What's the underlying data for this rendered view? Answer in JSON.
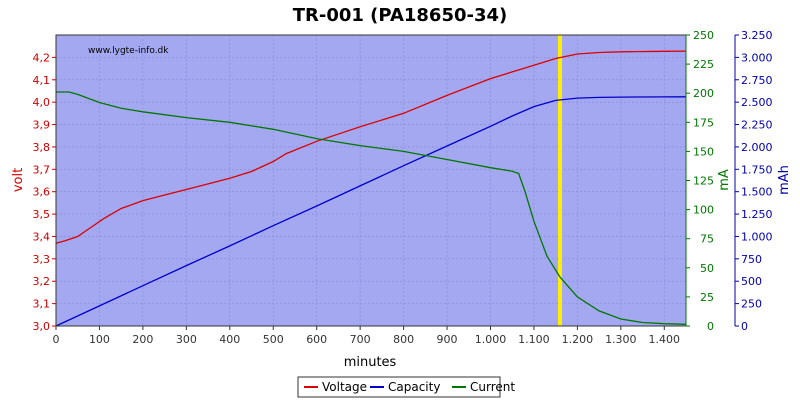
{
  "chart_data": {
    "type": "line",
    "title": "TR-001 (PA18650-34)",
    "watermark": "www.lygte-info.dk",
    "xlabel": "minutes",
    "xlim": [
      0,
      1450
    ],
    "x_ticks": [
      0,
      100,
      200,
      300,
      400,
      500,
      600,
      700,
      800,
      900,
      1000,
      1100,
      1200,
      1300,
      1400
    ],
    "x_tick_labels": [
      "0",
      "100",
      "200",
      "300",
      "400",
      "500",
      "600",
      "700",
      "800",
      "900",
      "1.000",
      "1.100",
      "1.200",
      "1.300",
      "1.400"
    ],
    "left_axis": {
      "label": "volt",
      "color": "#cc0000",
      "lim": [
        3.0,
        4.3
      ],
      "ticks": [
        3.0,
        3.1,
        3.2,
        3.3,
        3.4,
        3.5,
        3.6,
        3.7,
        3.8,
        3.9,
        4.0,
        4.1,
        4.2
      ],
      "tick_labels": [
        "3,0",
        "3,1",
        "3,2",
        "3,3",
        "3,4",
        "3,5",
        "3,6",
        "3,7",
        "3,8",
        "3,9",
        "4,0",
        "4,1",
        "4,2"
      ]
    },
    "mid_axis": {
      "label": "mA",
      "color": "#007700",
      "lim": [
        0,
        250
      ],
      "ticks": [
        0,
        25,
        50,
        75,
        100,
        125,
        150,
        175,
        200,
        225,
        250
      ],
      "tick_labels": [
        "0",
        "25",
        "50",
        "75",
        "100",
        "125",
        "150",
        "175",
        "200",
        "225",
        "250"
      ]
    },
    "right_axis": {
      "label": "mAh",
      "color": "#0000aa",
      "lim": [
        0,
        3250
      ],
      "ticks": [
        0,
        250,
        500,
        750,
        1000,
        1250,
        1500,
        1750,
        2000,
        2250,
        2500,
        2750,
        3000,
        3250
      ],
      "tick_labels": [
        "0",
        "250",
        "500",
        "750",
        "1.000",
        "1.250",
        "1.500",
        "1.750",
        "2.000",
        "2.250",
        "2.500",
        "2.750",
        "3.000",
        "3.250"
      ]
    },
    "marker_x": 1160,
    "plot_bg": "#a4a8f0",
    "grid": true,
    "legend_position": "bottom-center",
    "series": [
      {
        "name": "Voltage",
        "axis": "left",
        "color": "#dd0000",
        "x": [
          0,
          20,
          50,
          80,
          110,
          150,
          200,
          250,
          300,
          350,
          400,
          450,
          500,
          530,
          600,
          700,
          800,
          900,
          1000,
          1100,
          1150,
          1200,
          1250,
          1300,
          1400,
          1450
        ],
        "y": [
          3.37,
          3.38,
          3.4,
          3.44,
          3.48,
          3.525,
          3.56,
          3.585,
          3.61,
          3.635,
          3.66,
          3.69,
          3.735,
          3.77,
          3.825,
          3.89,
          3.95,
          4.03,
          4.105,
          4.165,
          4.195,
          4.215,
          4.222,
          4.225,
          4.227,
          4.228
        ]
      },
      {
        "name": "Capacity",
        "axis": "right",
        "color": "#0000cc",
        "x": [
          0,
          100,
          200,
          300,
          400,
          500,
          600,
          700,
          800,
          900,
          1000,
          1050,
          1100,
          1150,
          1200,
          1250,
          1300,
          1400,
          1450
        ],
        "y": [
          0,
          225,
          450,
          675,
          895,
          1120,
          1340,
          1565,
          1790,
          2010,
          2230,
          2345,
          2450,
          2520,
          2545,
          2553,
          2557,
          2559,
          2560
        ]
      },
      {
        "name": "Current",
        "axis": "mid",
        "color": "#007700",
        "x": [
          0,
          30,
          50,
          100,
          150,
          200,
          300,
          400,
          500,
          600,
          700,
          800,
          900,
          1000,
          1050,
          1065,
          1080,
          1100,
          1130,
          1160,
          1200,
          1250,
          1300,
          1350,
          1400,
          1450
        ],
        "y": [
          201,
          201,
          199,
          192,
          187,
          184,
          179,
          175,
          169,
          161,
          155,
          150,
          143,
          136,
          133,
          131,
          115,
          90,
          60,
          42,
          25,
          13,
          6,
          3,
          2,
          1.5
        ]
      }
    ]
  }
}
